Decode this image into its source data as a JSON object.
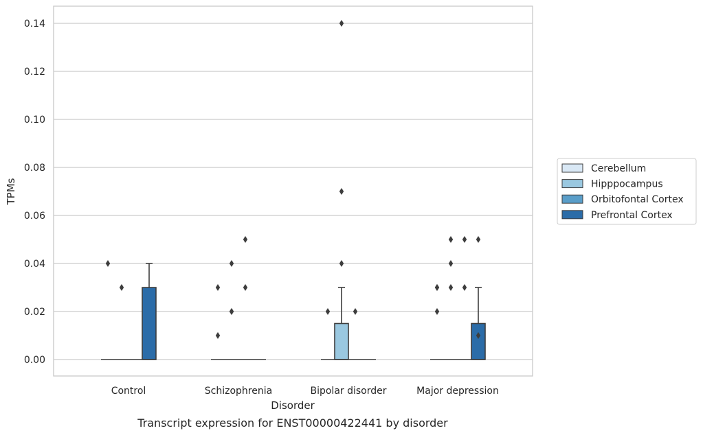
{
  "chart_data": {
    "type": "box",
    "title": "",
    "caption": "Transcript expression for ENST00000422441 by disorder",
    "xlabel": "Disorder",
    "ylabel": "TPMs",
    "ylim": [
      -0.007,
      0.147
    ],
    "yticks": [
      0.0,
      0.02,
      0.04,
      0.06,
      0.08,
      0.1,
      0.12,
      0.14
    ],
    "ytick_labels": [
      "0.00",
      "0.02",
      "0.04",
      "0.06",
      "0.08",
      "0.10",
      "0.12",
      "0.14"
    ],
    "grid": true,
    "legend_position": "right",
    "categories": [
      "Control",
      "Schizophrenia",
      "Bipolar disorder",
      "Major depression"
    ],
    "series": [
      {
        "name": "Cerebellum",
        "color": "#d9e8f5",
        "boxes": [
          {
            "q1": 0,
            "median": 0,
            "q3": 0,
            "whislo": 0,
            "whishi": 0,
            "fliers": [
              0.04
            ]
          },
          {
            "q1": 0,
            "median": 0,
            "q3": 0,
            "whislo": 0,
            "whishi": 0,
            "fliers": [
              0.03,
              0.01
            ]
          },
          {
            "q1": 0,
            "median": 0,
            "q3": 0,
            "whislo": 0,
            "whishi": 0,
            "fliers": [
              0.02
            ]
          },
          {
            "q1": 0,
            "median": 0,
            "q3": 0,
            "whislo": 0,
            "whishi": 0,
            "fliers": [
              0.03,
              0.03,
              0.02
            ]
          }
        ]
      },
      {
        "name": "Hipppocampus",
        "color": "#9ac8e0",
        "boxes": [
          {
            "q1": 0,
            "median": 0,
            "q3": 0,
            "whislo": 0,
            "whishi": 0,
            "fliers": [
              0.03
            ]
          },
          {
            "q1": 0,
            "median": 0,
            "q3": 0,
            "whislo": 0,
            "whishi": 0,
            "fliers": [
              0.04,
              0.02,
              0.02
            ]
          },
          {
            "q1": 0,
            "median": 0,
            "q3": 0.015,
            "whislo": 0,
            "whishi": 0.03,
            "fliers": [
              0.14,
              0.07,
              0.04
            ]
          },
          {
            "q1": 0,
            "median": 0,
            "q3": 0,
            "whislo": 0,
            "whishi": 0,
            "fliers": [
              0.05,
              0.04,
              0.03
            ]
          }
        ]
      },
      {
        "name": "Orbitofontal Cortex",
        "color": "#5a9ec9",
        "boxes": [
          {
            "q1": 0,
            "median": 0,
            "q3": 0,
            "whislo": 0,
            "whishi": 0,
            "fliers": []
          },
          {
            "q1": 0,
            "median": 0,
            "q3": 0,
            "whislo": 0,
            "whishi": 0,
            "fliers": [
              0.05,
              0.03
            ]
          },
          {
            "q1": 0,
            "median": 0,
            "q3": 0,
            "whislo": 0,
            "whishi": 0,
            "fliers": [
              0.02
            ]
          },
          {
            "q1": 0,
            "median": 0,
            "q3": 0,
            "whislo": 0,
            "whishi": 0,
            "fliers": [
              0.05,
              0.03
            ]
          }
        ]
      },
      {
        "name": "Prefrontal Cortex",
        "color": "#2b6ca8",
        "boxes": [
          {
            "q1": 0,
            "median": 0,
            "q3": 0.03,
            "whislo": 0,
            "whishi": 0.04,
            "fliers": []
          },
          {
            "q1": 0,
            "median": 0,
            "q3": 0,
            "whislo": 0,
            "whishi": 0,
            "fliers": []
          },
          {
            "q1": 0,
            "median": 0,
            "q3": 0,
            "whislo": 0,
            "whishi": 0,
            "fliers": []
          },
          {
            "q1": 0,
            "median": 0,
            "q3": 0.015,
            "whislo": 0,
            "whishi": 0.03,
            "fliers": [
              0.05,
              0.01
            ]
          }
        ]
      }
    ],
    "colors": {
      "grid": "#cccccc",
      "frame": "#cccccc",
      "edge": "#3d3d3d",
      "legend_border": "#cccccc"
    }
  }
}
